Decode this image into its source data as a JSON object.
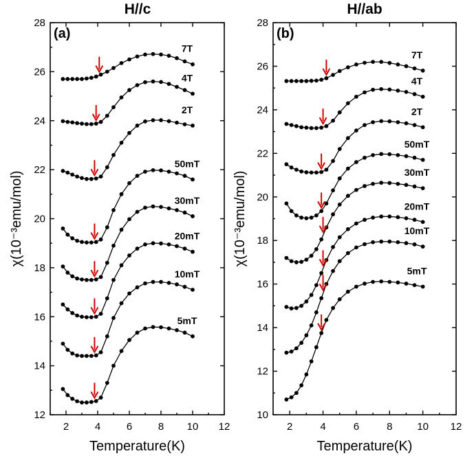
{
  "chart_data": [
    {
      "type": "line",
      "title": "H//c",
      "panel_label": "(a)",
      "xlabel": "Temperature(K)",
      "ylabel": "χ(10⁻³emu/mol)",
      "xlim": [
        1,
        12
      ],
      "ylim": [
        12,
        28
      ],
      "xticks": [
        2,
        4,
        6,
        8,
        10,
        12
      ],
      "yticks": [
        12,
        14,
        16,
        18,
        20,
        22,
        24,
        26,
        28
      ],
      "grid": false,
      "marker_color": "#000000",
      "arrow_color": "#d00000",
      "series": [
        {
          "name": "7T",
          "x": [
            1.8,
            2.1,
            2.4,
            2.7,
            3.0,
            3.3,
            3.6,
            3.9,
            4.2,
            4.6,
            5.0,
            5.5,
            6.0,
            6.5,
            7.0,
            7.5,
            8.0,
            8.5,
            9.0,
            9.5,
            10.0
          ],
          "y": [
            25.7,
            25.7,
            25.7,
            25.7,
            25.7,
            25.72,
            25.75,
            25.8,
            25.88,
            26.0,
            26.15,
            26.35,
            26.5,
            26.62,
            26.7,
            26.72,
            26.7,
            26.65,
            26.55,
            26.42,
            26.3
          ],
          "arrow_x": 4.1
        },
        {
          "name": "4T",
          "x": [
            1.8,
            2.1,
            2.4,
            2.7,
            3.0,
            3.3,
            3.6,
            3.9,
            4.2,
            4.6,
            5.0,
            5.5,
            6.0,
            6.5,
            7.0,
            7.5,
            8.0,
            8.5,
            9.0,
            9.5,
            10.0
          ],
          "y": [
            23.98,
            23.95,
            23.93,
            23.9,
            23.88,
            23.86,
            23.86,
            23.88,
            23.95,
            24.2,
            24.55,
            24.95,
            25.25,
            25.45,
            25.57,
            25.6,
            25.58,
            25.5,
            25.38,
            25.25,
            25.1
          ],
          "arrow_x": 3.9
        },
        {
          "name": "2T",
          "x": [
            1.8,
            2.1,
            2.4,
            2.7,
            3.0,
            3.3,
            3.6,
            3.9,
            4.2,
            4.6,
            5.0,
            5.5,
            6.0,
            6.5,
            7.0,
            7.5,
            8.0,
            8.5,
            9.0,
            9.5,
            10.0
          ],
          "y": [
            21.95,
            21.88,
            21.8,
            21.72,
            21.66,
            21.62,
            21.62,
            21.64,
            21.72,
            22.1,
            22.6,
            23.1,
            23.5,
            23.8,
            23.97,
            24.02,
            24.02,
            23.98,
            23.92,
            23.85,
            23.8
          ],
          "arrow_x": 3.8
        },
        {
          "name": "50mT",
          "x": [
            1.8,
            2.1,
            2.4,
            2.7,
            3.0,
            3.3,
            3.6,
            3.9,
            4.2,
            4.6,
            5.0,
            5.5,
            6.0,
            6.5,
            7.0,
            7.5,
            8.0,
            8.5,
            9.0,
            9.5,
            10.0
          ],
          "y": [
            19.6,
            19.35,
            19.2,
            19.1,
            19.05,
            19.03,
            19.03,
            19.05,
            19.15,
            19.65,
            20.35,
            21.0,
            21.45,
            21.75,
            21.92,
            21.98,
            21.97,
            21.92,
            21.85,
            21.75,
            21.6
          ],
          "arrow_x": 3.8
        },
        {
          "name": "30mT",
          "x": [
            1.8,
            2.1,
            2.4,
            2.7,
            3.0,
            3.3,
            3.6,
            3.9,
            4.2,
            4.6,
            5.0,
            5.5,
            6.0,
            6.5,
            7.0,
            7.5,
            8.0,
            8.5,
            9.0,
            9.5,
            10.0
          ],
          "y": [
            18.05,
            17.8,
            17.65,
            17.56,
            17.52,
            17.5,
            17.5,
            17.52,
            17.62,
            18.2,
            18.9,
            19.55,
            19.98,
            20.28,
            20.45,
            20.5,
            20.48,
            20.42,
            20.35,
            20.25,
            20.1
          ],
          "arrow_x": 3.8
        },
        {
          "name": "20mT",
          "x": [
            1.8,
            2.1,
            2.4,
            2.7,
            3.0,
            3.3,
            3.6,
            3.9,
            4.2,
            4.6,
            5.0,
            5.5,
            6.0,
            6.5,
            7.0,
            7.5,
            8.0,
            8.5,
            9.0,
            9.5,
            10.0
          ],
          "y": [
            16.5,
            16.3,
            16.15,
            16.05,
            16.0,
            15.98,
            15.98,
            16.0,
            16.12,
            16.75,
            17.5,
            18.1,
            18.5,
            18.78,
            18.95,
            19.0,
            18.99,
            18.95,
            18.88,
            18.78,
            18.65
          ],
          "arrow_x": 3.8
        },
        {
          "name": "10mT",
          "x": [
            1.8,
            2.1,
            2.4,
            2.7,
            3.0,
            3.3,
            3.6,
            3.9,
            4.2,
            4.6,
            5.0,
            5.5,
            6.0,
            6.5,
            7.0,
            7.5,
            8.0,
            8.5,
            9.0,
            9.5,
            10.0
          ],
          "y": [
            14.9,
            14.65,
            14.5,
            14.42,
            14.4,
            14.4,
            14.4,
            14.42,
            14.55,
            15.2,
            15.95,
            16.55,
            16.95,
            17.2,
            17.36,
            17.42,
            17.42,
            17.38,
            17.32,
            17.22,
            17.1
          ],
          "arrow_x": 3.8
        },
        {
          "name": "5mT",
          "x": [
            1.8,
            2.1,
            2.4,
            2.7,
            3.0,
            3.3,
            3.6,
            3.9,
            4.2,
            4.6,
            5.0,
            5.5,
            6.0,
            6.5,
            7.0,
            7.5,
            8.0,
            8.5,
            9.0,
            9.5,
            10.0
          ],
          "y": [
            13.05,
            12.8,
            12.65,
            12.55,
            12.5,
            12.5,
            12.52,
            12.56,
            12.7,
            13.3,
            14.0,
            14.6,
            15.05,
            15.35,
            15.52,
            15.58,
            15.57,
            15.52,
            15.45,
            15.35,
            15.2
          ],
          "arrow_x": 3.8
        }
      ]
    },
    {
      "type": "line",
      "title": "H//ab",
      "panel_label": "(b)",
      "xlabel": "Temperature(K)",
      "ylabel": "χ(10⁻³emu/mol)",
      "xlim": [
        1,
        12
      ],
      "ylim": [
        10,
        28
      ],
      "xticks": [
        2,
        4,
        6,
        8,
        10,
        12
      ],
      "yticks": [
        10,
        12,
        14,
        16,
        18,
        20,
        22,
        24,
        26,
        28
      ],
      "grid": false,
      "marker_color": "#000000",
      "arrow_color": "#d00000",
      "series": [
        {
          "name": "7T",
          "x": [
            1.8,
            2.1,
            2.4,
            2.7,
            3.0,
            3.3,
            3.6,
            3.9,
            4.2,
            4.6,
            5.0,
            5.5,
            6.0,
            6.5,
            7.0,
            7.5,
            8.0,
            8.5,
            9.0,
            9.5,
            10.0
          ],
          "y": [
            25.32,
            25.32,
            25.32,
            25.32,
            25.32,
            25.33,
            25.34,
            25.38,
            25.45,
            25.6,
            25.78,
            25.95,
            26.08,
            26.16,
            26.2,
            26.2,
            26.15,
            26.08,
            26.0,
            25.9,
            25.8
          ],
          "arrow_x": 4.2
        },
        {
          "name": "4T",
          "x": [
            1.8,
            2.1,
            2.4,
            2.7,
            3.0,
            3.3,
            3.6,
            3.9,
            4.2,
            4.6,
            5.0,
            5.5,
            6.0,
            6.5,
            7.0,
            7.5,
            8.0,
            8.5,
            9.0,
            9.5,
            10.0
          ],
          "y": [
            23.35,
            23.3,
            23.25,
            23.2,
            23.18,
            23.16,
            23.16,
            23.18,
            23.25,
            23.5,
            23.88,
            24.3,
            24.6,
            24.8,
            24.92,
            24.95,
            24.93,
            24.88,
            24.82,
            24.72,
            24.6
          ],
          "arrow_x": 4.0
        },
        {
          "name": "2T",
          "x": [
            1.8,
            2.1,
            2.4,
            2.7,
            3.0,
            3.3,
            3.6,
            3.9,
            4.2,
            4.6,
            5.0,
            5.5,
            6.0,
            6.5,
            7.0,
            7.5,
            8.0,
            8.5,
            9.0,
            9.5,
            10.0
          ],
          "y": [
            21.5,
            21.35,
            21.25,
            21.17,
            21.13,
            21.12,
            21.12,
            21.14,
            21.25,
            21.65,
            22.2,
            22.7,
            23.05,
            23.3,
            23.43,
            23.48,
            23.47,
            23.43,
            23.38,
            23.3,
            23.2
          ],
          "arrow_x": 3.9
        },
        {
          "name": "50mT",
          "x": [
            1.8,
            2.1,
            2.4,
            2.7,
            3.0,
            3.3,
            3.6,
            3.9,
            4.2,
            4.6,
            5.0,
            5.5,
            6.0,
            6.5,
            7.0,
            7.5,
            8.0,
            8.5,
            9.0,
            9.5,
            10.0
          ],
          "y": [
            19.7,
            19.35,
            19.15,
            19.05,
            19.02,
            19.05,
            19.15,
            19.35,
            19.7,
            20.3,
            20.85,
            21.3,
            21.6,
            21.8,
            21.92,
            21.97,
            21.96,
            21.92,
            21.87,
            21.8,
            21.7
          ],
          "arrow_x": 3.9
        },
        {
          "name": "30mT",
          "x": [
            1.8,
            2.1,
            2.4,
            2.7,
            3.0,
            3.3,
            3.6,
            3.9,
            4.2,
            4.6,
            5.0,
            5.5,
            6.0,
            6.5,
            7.0,
            7.5,
            8.0,
            8.5,
            9.0,
            9.5,
            10.0
          ],
          "y": [
            17.2,
            17.05,
            17.0,
            17.02,
            17.12,
            17.3,
            17.6,
            18.05,
            18.6,
            19.2,
            19.65,
            20.05,
            20.32,
            20.5,
            20.6,
            20.65,
            20.64,
            20.6,
            20.55,
            20.48,
            20.4
          ],
          "arrow_x": 4.0
        },
        {
          "name": "20mT",
          "x": [
            1.8,
            2.1,
            2.4,
            2.7,
            3.0,
            3.3,
            3.6,
            3.9,
            4.2,
            4.6,
            5.0,
            5.5,
            6.0,
            6.5,
            7.0,
            7.5,
            8.0,
            8.5,
            9.0,
            9.5,
            10.0
          ],
          "y": [
            14.95,
            14.88,
            14.9,
            15.0,
            15.2,
            15.5,
            15.95,
            16.5,
            17.1,
            17.7,
            18.15,
            18.52,
            18.78,
            18.95,
            19.05,
            19.1,
            19.1,
            19.07,
            19.02,
            18.95,
            18.85
          ],
          "arrow_x": 4.0
        },
        {
          "name": "10mT",
          "x": [
            1.8,
            2.1,
            2.4,
            2.7,
            3.0,
            3.3,
            3.6,
            3.9,
            4.2,
            4.6,
            5.0,
            5.5,
            6.0,
            6.5,
            7.0,
            7.5,
            8.0,
            8.5,
            9.0,
            9.5,
            10.0
          ],
          "y": [
            12.85,
            12.9,
            13.05,
            13.3,
            13.65,
            14.1,
            14.7,
            15.35,
            16.0,
            16.6,
            17.05,
            17.42,
            17.68,
            17.83,
            17.92,
            17.95,
            17.95,
            17.92,
            17.88,
            17.82,
            17.72
          ],
          "arrow_x": 4.0
        },
        {
          "name": "5mT",
          "x": [
            1.8,
            2.1,
            2.4,
            2.7,
            3.0,
            3.3,
            3.6,
            3.9,
            4.2,
            4.6,
            5.0,
            5.5,
            6.0,
            6.5,
            7.0,
            7.5,
            8.0,
            8.5,
            9.0,
            9.5,
            10.0
          ],
          "y": [
            10.7,
            10.8,
            11.0,
            11.35,
            11.85,
            12.45,
            13.1,
            13.75,
            14.35,
            14.9,
            15.3,
            15.65,
            15.88,
            16.02,
            16.1,
            16.12,
            16.1,
            16.07,
            16.02,
            15.95,
            15.88
          ],
          "arrow_x": 3.9
        }
      ]
    }
  ]
}
